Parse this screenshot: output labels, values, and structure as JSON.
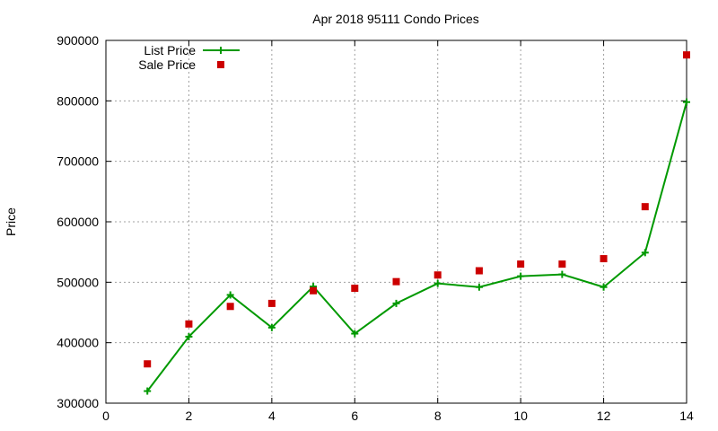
{
  "chart_data": {
    "type": "line",
    "title": "Apr 2018 95111 Condo Prices",
    "xlabel": "",
    "ylabel": "Price",
    "xlim": [
      0,
      14
    ],
    "ylim": [
      300000,
      900000
    ],
    "x_ticks": [
      0,
      2,
      4,
      6,
      8,
      10,
      12,
      14
    ],
    "x_tick_labels": [
      "0",
      "2",
      "4",
      "6",
      "8",
      "10",
      "12",
      "14"
    ],
    "y_ticks": [
      300000,
      400000,
      500000,
      600000,
      700000,
      800000,
      900000
    ],
    "y_tick_labels": [
      "300000",
      "400000",
      "500000",
      "600000",
      "700000",
      "800000",
      "900000"
    ],
    "grid": true,
    "legend_position": "top-left",
    "series": [
      {
        "name": "List Price",
        "style": "line-with-plus-markers",
        "color": "#009900",
        "x": [
          1,
          2,
          3,
          4,
          5,
          6,
          7,
          8,
          9,
          10,
          11,
          12,
          13,
          14
        ],
        "y": [
          320000,
          410000,
          479000,
          425000,
          493000,
          415000,
          465000,
          498000,
          492000,
          510000,
          513000,
          492000,
          549000,
          798000
        ]
      },
      {
        "name": "Sale Price",
        "style": "square-points",
        "color": "#cc0000",
        "x": [
          1,
          2,
          3,
          4,
          5,
          6,
          7,
          8,
          9,
          10,
          11,
          12,
          13,
          14
        ],
        "y": [
          365000,
          431000,
          460000,
          465000,
          486000,
          490000,
          501000,
          512000,
          519000,
          530000,
          530000,
          539000,
          625000,
          876000
        ]
      }
    ]
  }
}
